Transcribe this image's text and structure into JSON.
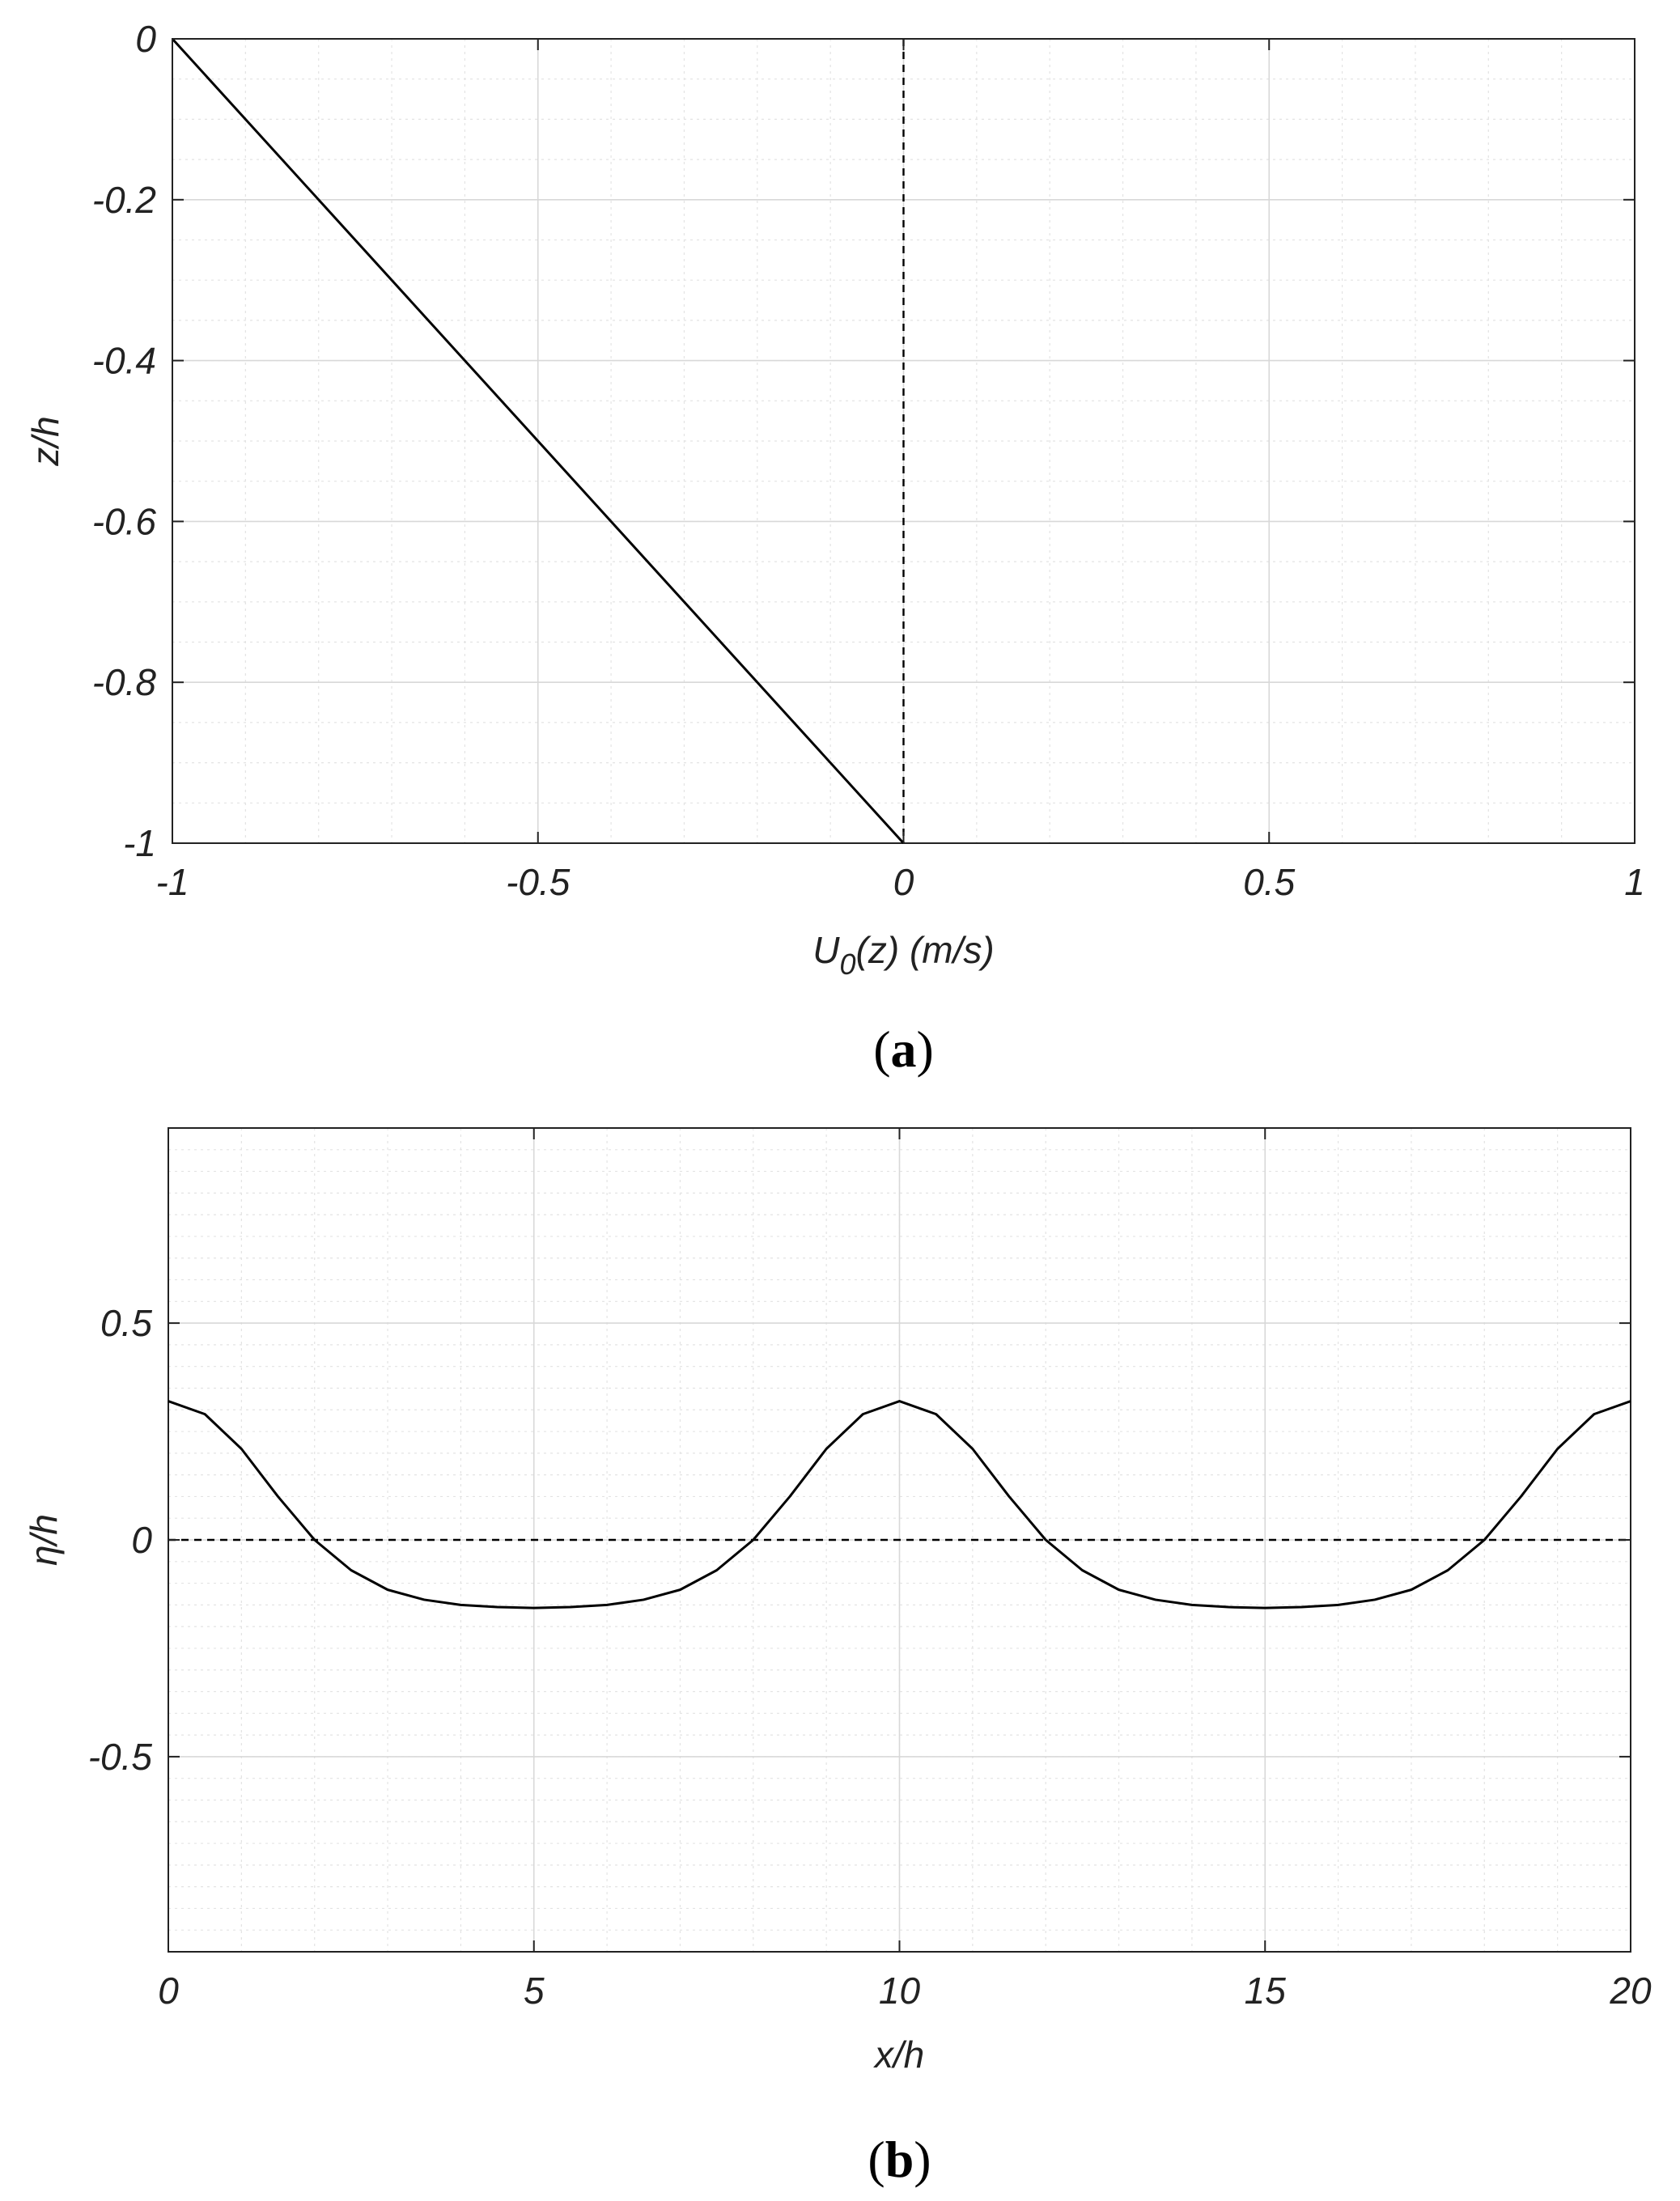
{
  "chart_data": [
    {
      "panel": "(a)",
      "panel_letter": "a",
      "type": "line",
      "xlabel": "U",
      "xlabel_sub": "0",
      "xlabel_rest": "(z) (m/s)",
      "ylabel": "z/h",
      "xlim": [
        -1,
        1
      ],
      "ylim": [
        -1,
        0
      ],
      "xticks": [
        -1,
        -0.5,
        0,
        0.5,
        1
      ],
      "xtick_labels": [
        "-1",
        "-0.5",
        "0",
        "0.5",
        "1"
      ],
      "yticks": [
        0,
        -0.2,
        -0.4,
        -0.6,
        -0.8,
        -1
      ],
      "ytick_labels": [
        "0",
        "-0.2",
        "-0.4",
        "-0.6",
        "-0.8",
        "-1"
      ],
      "grid": true,
      "minor_grid": true,
      "series": [
        {
          "style": "solid",
          "color": "#000000",
          "x": [
            -1,
            0
          ],
          "y": [
            0,
            -1
          ]
        },
        {
          "style": "dashed",
          "color": "#000000",
          "x": [
            0,
            0
          ],
          "y": [
            0,
            -1
          ]
        }
      ]
    },
    {
      "panel": "(b)",
      "panel_letter": "b",
      "type": "line",
      "xlabel": "x/h",
      "ylabel": "η/h",
      "xlim": [
        0,
        20
      ],
      "ylim": [
        -0.95,
        0.95
      ],
      "xticks": [
        0,
        5,
        10,
        15,
        20
      ],
      "xtick_labels": [
        "0",
        "5",
        "10",
        "15",
        "20"
      ],
      "yticks": [
        0.5,
        0,
        -0.5
      ],
      "ytick_labels": [
        "0.5",
        "0",
        "-0.5"
      ],
      "grid": true,
      "minor_grid": true,
      "series": [
        {
          "style": "solid",
          "color": "#000000",
          "x": [
            0,
            0.5,
            1,
            1.5,
            2,
            2.5,
            3,
            3.5,
            4,
            4.5,
            5,
            5.5,
            6,
            6.5,
            7,
            7.5,
            8,
            8.5,
            9,
            9.5,
            10,
            10.5,
            11,
            11.5,
            12,
            12.5,
            13,
            13.5,
            14,
            14.5,
            15,
            15.5,
            16,
            16.5,
            17,
            17.5,
            18,
            18.5,
            19,
            19.5,
            20
          ],
          "y": [
            0.32,
            0.29,
            0.21,
            0.1,
            0.0,
            -0.07,
            -0.115,
            -0.138,
            -0.15,
            -0.155,
            -0.157,
            -0.155,
            -0.15,
            -0.138,
            -0.115,
            -0.07,
            0.0,
            0.1,
            0.21,
            0.29,
            0.32,
            0.29,
            0.21,
            0.1,
            0.0,
            -0.07,
            -0.115,
            -0.138,
            -0.15,
            -0.155,
            -0.157,
            -0.155,
            -0.15,
            -0.138,
            -0.115,
            -0.07,
            0.0,
            0.1,
            0.21,
            0.29,
            0.32
          ]
        },
        {
          "style": "dashed",
          "color": "#000000",
          "x": [
            0,
            20
          ],
          "y": [
            0,
            0
          ]
        }
      ]
    }
  ]
}
